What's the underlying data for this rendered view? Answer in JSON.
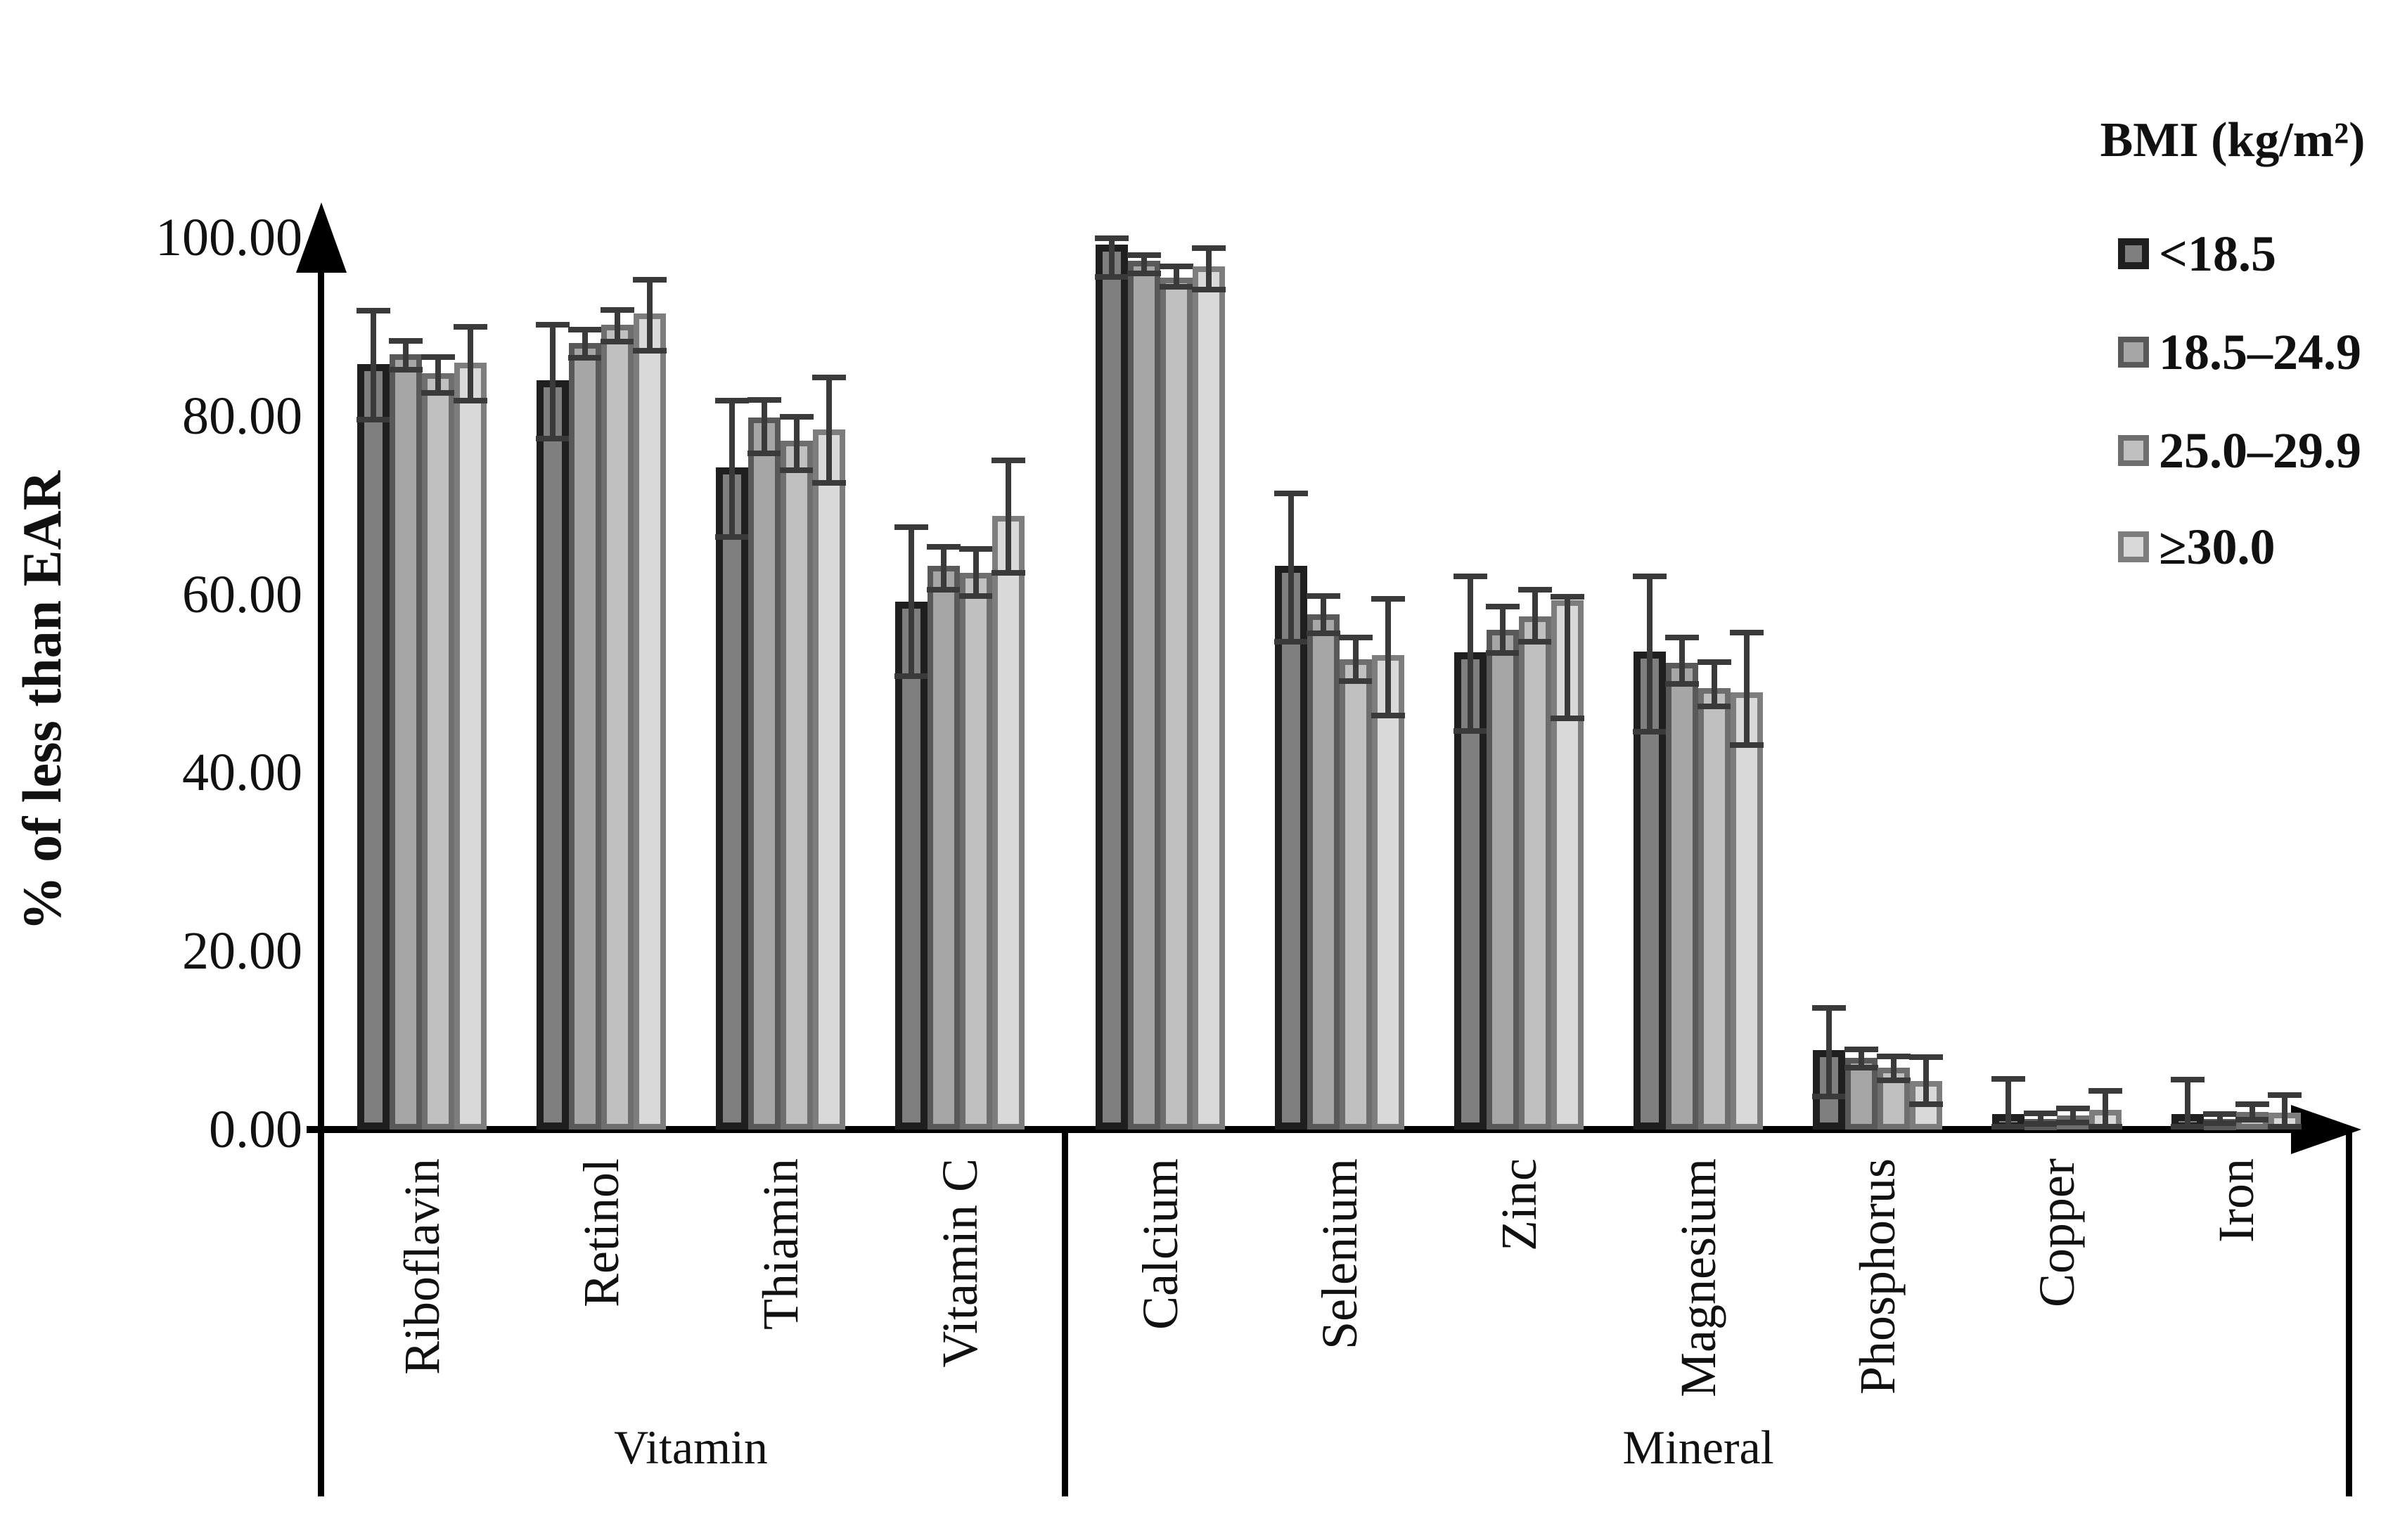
{
  "chart_data": {
    "type": "bar",
    "title": "",
    "xlabel": "",
    "ylabel": "% of less than EAR",
    "ylim": [
      0,
      100
    ],
    "grid": false,
    "legend_position": "top-right",
    "legend_title": "BMI (kg/m²)",
    "y_ticks": [
      {
        "label": "0.00",
        "value": 0
      },
      {
        "label": "20.00",
        "value": 20
      },
      {
        "label": "40.00",
        "value": 40
      },
      {
        "label": "60.00",
        "value": 60
      },
      {
        "label": "80.00",
        "value": 80
      },
      {
        "label": "100.00",
        "value": 100
      }
    ],
    "categories": [
      "Riboflavin",
      "Retinol",
      "Thiamin",
      "Vitamin C",
      "Calcium",
      "Selenium",
      "Zinc",
      "Magnesium",
      "Phosphorus",
      "Copper",
      "Iron"
    ],
    "sections": [
      {
        "label": "Vitamin",
        "category_indexes": [
          0,
          1,
          2,
          3
        ]
      },
      {
        "label": "Mineral",
        "category_indexes": [
          4,
          5,
          6,
          7,
          8,
          9,
          10
        ]
      }
    ],
    "series": [
      {
        "name": "<18.5",
        "fill": "#7f7f7f",
        "border": "#1f1f1f",
        "values": [
          85.8,
          84.0,
          74.2,
          59.2,
          99.2,
          63.2,
          53.5,
          53.6,
          8.9,
          1.7,
          1.7
        ],
        "err_up": [
          6.0,
          6.2,
          7.5,
          8.3,
          0.7,
          8.1,
          8.5,
          8.4,
          4.7,
          4.0,
          3.9
        ],
        "err_down": [
          6.2,
          6.5,
          7.8,
          8.4,
          3.6,
          8.5,
          8.8,
          9.0,
          5.2,
          1.4,
          1.4
        ]
      },
      {
        "name": "18.5–24.9",
        "fill": "#a6a6a6",
        "border": "#595959",
        "values": [
          86.9,
          88.2,
          79.8,
          63.2,
          97.4,
          57.8,
          56.0,
          52.3,
          8.0,
          1.2,
          1.2
        ],
        "err_up": [
          1.5,
          1.5,
          2.0,
          2.1,
          0.6,
          2.0,
          2.6,
          2.9,
          1.0,
          0.6,
          0.5
        ],
        "err_down": [
          1.7,
          1.7,
          4.0,
          2.7,
          1.4,
          2.2,
          2.6,
          2.3,
          1.1,
          0.6,
          0.5
        ]
      },
      {
        "name": "25.0–29.9",
        "fill": "#c0c0c0",
        "border": "#6e6e6e",
        "values": [
          84.8,
          90.2,
          77.2,
          62.4,
          95.5,
          52.7,
          57.5,
          49.5,
          6.9,
          1.6,
          2.0
        ],
        "err_up": [
          1.8,
          1.7,
          2.7,
          2.7,
          1.3,
          2.5,
          3.0,
          2.9,
          1.3,
          0.8,
          0.8
        ],
        "err_down": [
          2.2,
          1.9,
          3.3,
          2.6,
          1.0,
          2.4,
          2.8,
          2.1,
          1.4,
          0.8,
          0.9
        ]
      },
      {
        "name": "≥30.0",
        "fill": "#d9d9d9",
        "border": "#7d7d7d",
        "values": [
          86.0,
          91.5,
          78.5,
          68.8,
          96.8,
          53.2,
          59.3,
          49.0,
          5.4,
          2.2,
          1.9
        ],
        "err_up": [
          4.0,
          3.8,
          5.8,
          6.2,
          2.0,
          6.3,
          0.4,
          6.7,
          2.7,
          2.1,
          2.0
        ],
        "err_down": [
          4.3,
          4.2,
          6.0,
          6.4,
          2.6,
          6.8,
          13.2,
          5.9,
          2.6,
          1.9,
          1.6
        ]
      }
    ]
  }
}
